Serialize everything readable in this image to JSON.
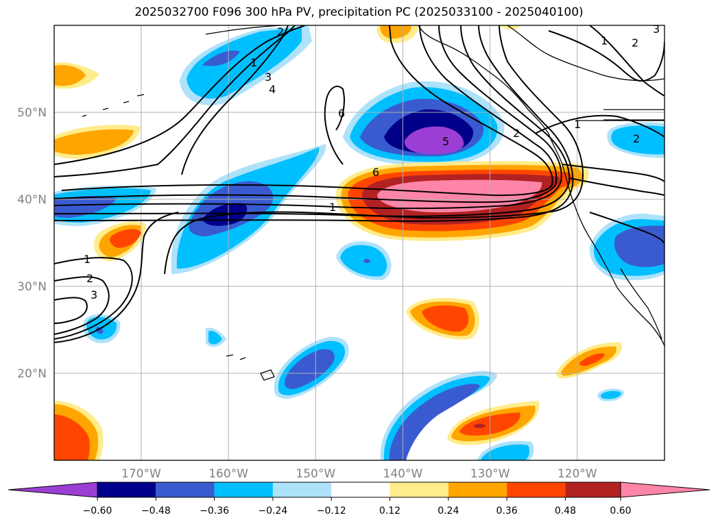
{
  "title": "2025032700 F096 300 hPa PV, precipitation PC (2025033100 - 2025040100)",
  "map": {
    "lon_range": [
      -180,
      -110
    ],
    "lat_range": [
      10,
      60
    ],
    "lat_ticks": [
      {
        "value": 20,
        "label": "20°N"
      },
      {
        "value": 30,
        "label": "30°N"
      },
      {
        "value": 40,
        "label": "40°N"
      },
      {
        "value": 50,
        "label": "50°N"
      }
    ],
    "lon_ticks": [
      {
        "value": -170,
        "label": "170°W"
      },
      {
        "value": -160,
        "label": "160°W"
      },
      {
        "value": -150,
        "label": "150°W"
      },
      {
        "value": -140,
        "label": "140°W"
      },
      {
        "value": -130,
        "label": "130°W"
      },
      {
        "value": -120,
        "label": "120°W"
      }
    ],
    "grid": true
  },
  "colorbar": {
    "colors": {
      "extend_low": "#9b3fd4",
      "b1": "#00008b",
      "b2": "#3a5bd0",
      "b3": "#00bfff",
      "b4": "#ade2fa",
      "b5": "#ffffff",
      "b6": "#ffec8a",
      "b7": "#ffa500",
      "b8": "#ff4500",
      "b9": "#b22222",
      "extend_high": "#ff85a8"
    },
    "labels": [
      "−0.60",
      "−0.48",
      "−0.36",
      "−0.24",
      "−0.12",
      "0.12",
      "0.24",
      "0.36",
      "0.48",
      "0.60"
    ]
  },
  "pv_contour_labels": {
    "l1": "1",
    "l2": "2",
    "l3": "3",
    "l4": "4",
    "l5": "5",
    "l6": "6",
    "l7": "2",
    "l8": "1",
    "l9": "6",
    "l10": "1",
    "l11": "2",
    "l12": "3",
    "l13": "1",
    "l14": "2",
    "l15": "3",
    "l16": "1",
    "l17": "2"
  }
}
